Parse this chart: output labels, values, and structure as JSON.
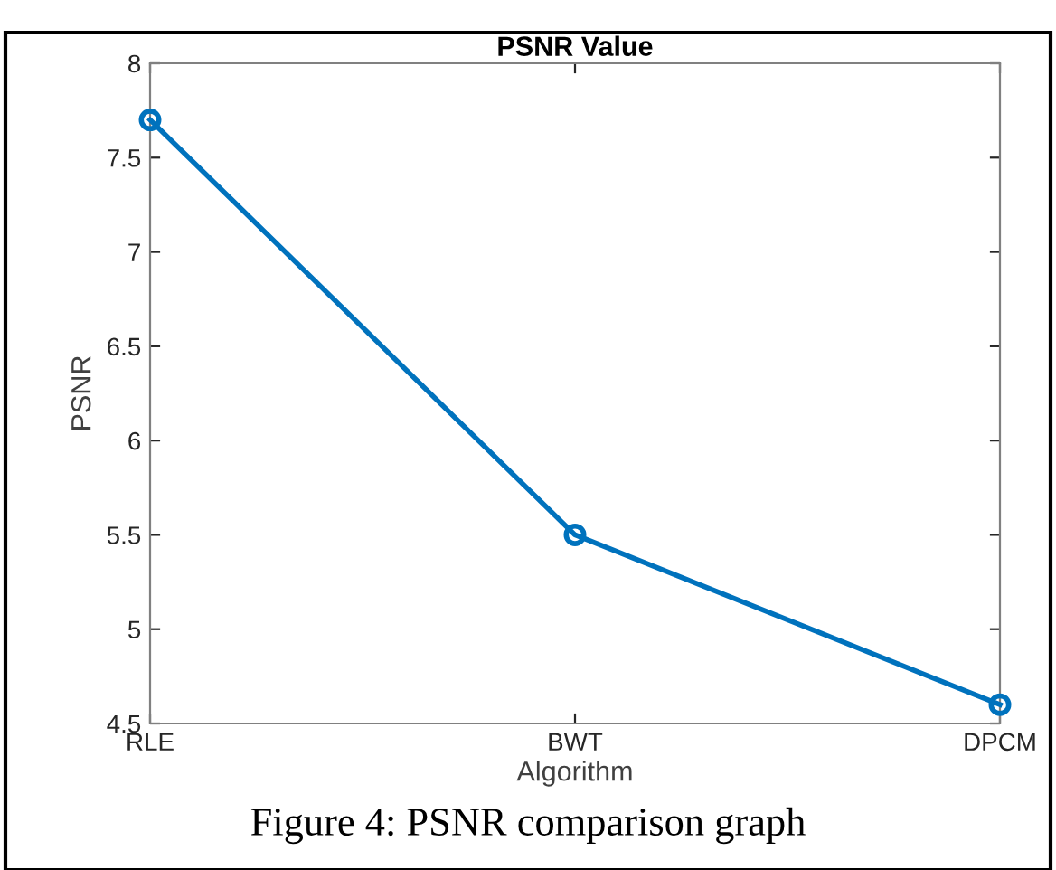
{
  "chart_data": {
    "type": "line",
    "title": "PSNR Value",
    "xlabel": "Algorithm",
    "ylabel": "PSNR",
    "categories": [
      "RLE",
      "BWT",
      "DPCM"
    ],
    "series": [
      {
        "color": "#0072bd",
        "values": [
          7.7,
          5.5,
          4.6
        ]
      }
    ],
    "ylim": [
      4.5,
      8
    ],
    "yticks": [
      4.5,
      5,
      5.5,
      6,
      6.5,
      7,
      7.5,
      8
    ],
    "marker": "circle",
    "line_style": "solid",
    "grid": false,
    "legend": false,
    "annotations": [
      "Figure 4: PSNR comparison graph"
    ]
  }
}
